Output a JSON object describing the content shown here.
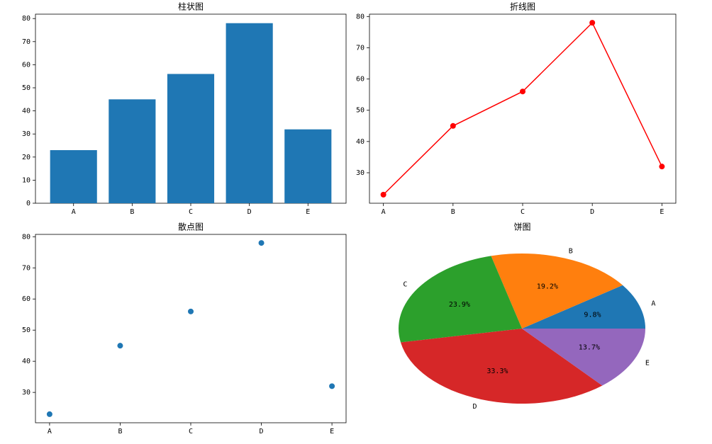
{
  "chart_data": [
    {
      "type": "bar",
      "title": "柱状图",
      "categories": [
        "A",
        "B",
        "C",
        "D",
        "E"
      ],
      "values": [
        23,
        45,
        56,
        78,
        32
      ],
      "color": "#1f77b4",
      "ylim": [
        0,
        81.9
      ],
      "yticks": [
        0,
        10,
        20,
        30,
        40,
        50,
        60,
        70,
        80
      ]
    },
    {
      "type": "line",
      "title": "折线图",
      "categories": [
        "A",
        "B",
        "C",
        "D",
        "E"
      ],
      "values": [
        23,
        45,
        56,
        78,
        32
      ],
      "color": "#ff0000",
      "ylim": [
        20.25,
        80.75
      ],
      "yticks": [
        30,
        40,
        50,
        60,
        70,
        80
      ]
    },
    {
      "type": "scatter",
      "title": "散点图",
      "categories": [
        "A",
        "B",
        "C",
        "D",
        "E"
      ],
      "values": [
        23,
        45,
        56,
        78,
        32
      ],
      "color": "#1f77b4",
      "ylim": [
        20.25,
        80.75
      ],
      "yticks": [
        30,
        40,
        50,
        60,
        70,
        80
      ]
    },
    {
      "type": "pie",
      "title": "饼图",
      "categories": [
        "A",
        "B",
        "C",
        "D",
        "E"
      ],
      "values": [
        9.8,
        19.2,
        23.9,
        33.3,
        13.7
      ],
      "value_labels": [
        "9.8%",
        "19.2%",
        "23.9%",
        "33.3%",
        "13.7%"
      ],
      "colors": [
        "#1f77b4",
        "#ff7f0e",
        "#2ca02c",
        "#d62728",
        "#9467bd"
      ]
    }
  ]
}
